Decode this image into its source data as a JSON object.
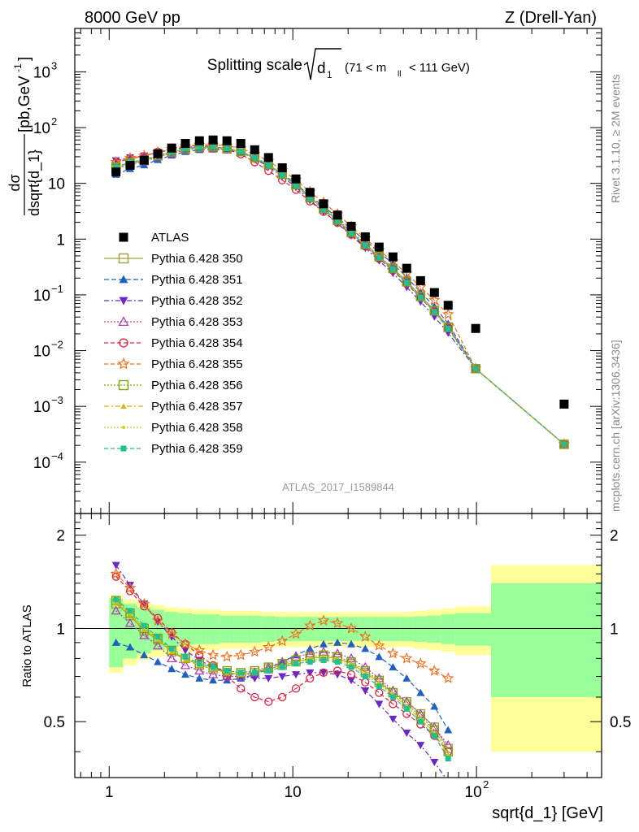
{
  "header": {
    "left": "8000 GeV pp",
    "right": "Z (Drell-Yan)"
  },
  "main_title": {
    "text": "Splitting scale",
    "sqrt_arg": "d",
    "sqrt_sub": "1",
    "cut_open": "(71 < m",
    "cut_sub": "ll",
    "cut_close": "< 111 GeV)"
  },
  "ylabel": {
    "numerator": "dσ",
    "denominator": "dsqrt{d_1}",
    "units": "[pb,GeV",
    "units_sup": "-1",
    "units_close": "]"
  },
  "ratio_ylabel": "Ratio to ATLAS",
  "xlabel": "sqrt{d_1} [GeV]",
  "analysis_id": "ATLAS_2017_I1589844",
  "side_right_top": "Rivet 3.1.10, ≥ 2M events",
  "side_right_bottom": "mcplots.cern.ch [arXiv:1306.3436]",
  "chart_data": {
    "type": "scatter",
    "x_scale": "log",
    "y_scale": "log",
    "xlim": [
      0.65,
      480
    ],
    "ylim_main": [
      1.2e-05,
      6000
    ],
    "ylim_ratio": [
      0.33,
      2.35
    ],
    "x_ticks": [
      {
        "v": 1,
        "label": "1"
      },
      {
        "v": 10,
        "label": "10"
      },
      {
        "v": 100,
        "label": "10",
        "sup": "2"
      }
    ],
    "y_ticks_main": [
      {
        "v": 1000,
        "label": "10",
        "sup": "3"
      },
      {
        "v": 100,
        "label": "10",
        "sup": "2"
      },
      {
        "v": 10,
        "label": "10",
        "sup": ""
      },
      {
        "v": 1,
        "label": "1",
        "sup": ""
      },
      {
        "v": 0.1,
        "label": "10",
        "sup": "−1"
      },
      {
        "v": 0.01,
        "label": "10",
        "sup": "−2"
      },
      {
        "v": 0.001,
        "label": "10",
        "sup": "−3"
      },
      {
        "v": 0.0001,
        "label": "10",
        "sup": "−4"
      }
    ],
    "y_ticks_ratio": [
      {
        "v": 0.5,
        "label": "0.5"
      },
      {
        "v": 1,
        "label": "1"
      },
      {
        "v": 2,
        "label": "2"
      }
    ],
    "legend_placement": "middle-left",
    "x": [
      1.09,
      1.3,
      1.55,
      1.84,
      2.19,
      2.6,
      3.1,
      3.68,
      4.38,
      5.21,
      6.2,
      7.37,
      8.76,
      10.4,
      12.4,
      14.7,
      17.5,
      20.8,
      24.8,
      29.5,
      35.1,
      41.7,
      49.6,
      59.0,
      70.1,
      99.0,
      300.0
    ],
    "atlas": {
      "name": "ATLAS",
      "values": [
        16,
        21,
        26,
        34,
        43,
        52,
        58,
        60,
        58,
        52,
        40,
        29,
        19,
        12,
        6.9,
        4.3,
        2.7,
        1.7,
        1.1,
        0.72,
        0.48,
        0.3,
        0.18,
        0.11,
        0.065,
        0.025,
        0.0011
      ]
    },
    "band_edges": [
      1.0,
      1.19,
      1.42,
      1.69,
      2.01,
      2.39,
      2.84,
      3.38,
      4.02,
      4.78,
      5.68,
      6.76,
      8.04,
      9.56,
      11.4,
      13.5,
      16.1,
      19.1,
      22.7,
      27.0,
      32.1,
      38.2,
      45.4,
      54.0,
      64.3,
      76.5,
      120,
      480
    ],
    "band_stat": [
      0.25,
      0.2,
      0.17,
      0.15,
      0.13,
      0.12,
      0.11,
      0.11,
      0.1,
      0.1,
      0.1,
      0.095,
      0.09,
      0.09,
      0.09,
      0.09,
      0.09,
      0.09,
      0.09,
      0.09,
      0.09,
      0.09,
      0.095,
      0.1,
      0.11,
      0.12,
      0.4
    ],
    "band_total": [
      0.28,
      0.24,
      0.21,
      0.19,
      0.17,
      0.16,
      0.15,
      0.15,
      0.14,
      0.14,
      0.14,
      0.13,
      0.13,
      0.13,
      0.13,
      0.13,
      0.13,
      0.13,
      0.13,
      0.13,
      0.13,
      0.13,
      0.14,
      0.15,
      0.16,
      0.18,
      0.6
    ],
    "series": [
      {
        "name": "Pythia 6.428 350",
        "color": "#a0a040",
        "marker": "square-open",
        "dash": "solid",
        "ratio": [
          1.2,
          1.1,
          0.98,
          0.92,
          0.84,
          0.8,
          0.76,
          0.74,
          0.72,
          0.71,
          0.72,
          0.74,
          0.76,
          0.78,
          0.8,
          0.81,
          0.8,
          0.77,
          0.72,
          0.67,
          0.62,
          0.58,
          0.53,
          0.48,
          0.41
        ]
      },
      {
        "name": "Pythia 6.428 351",
        "color": "#1f60c0",
        "marker": "triangle-up",
        "dash": "6,3",
        "ratio": [
          0.9,
          0.87,
          0.82,
          0.78,
          0.74,
          0.71,
          0.69,
          0.68,
          0.68,
          0.69,
          0.71,
          0.74,
          0.78,
          0.82,
          0.86,
          0.89,
          0.9,
          0.89,
          0.86,
          0.81,
          0.75,
          0.69,
          0.62,
          0.56,
          0.47
        ]
      },
      {
        "name": "Pythia 6.428 352",
        "color": "#6a28c8",
        "marker": "triangle-down",
        "dash": "6,3,2,3",
        "ratio": [
          1.6,
          1.38,
          1.2,
          1.05,
          0.94,
          0.85,
          0.79,
          0.75,
          0.72,
          0.7,
          0.69,
          0.69,
          0.7,
          0.71,
          0.72,
          0.72,
          0.71,
          0.68,
          0.63,
          0.57,
          0.51,
          0.46,
          0.42,
          0.37,
          0.32
        ]
      },
      {
        "name": "Pythia 6.428 353",
        "color": "#b040b0",
        "marker": "triangle-up-open",
        "dash": "2,2",
        "ratio": [
          1.14,
          1.04,
          0.95,
          0.88,
          0.8,
          0.76,
          0.73,
          0.71,
          0.7,
          0.7,
          0.72,
          0.75,
          0.78,
          0.81,
          0.83,
          0.84,
          0.83,
          0.8,
          0.75,
          0.69,
          0.63,
          0.58,
          0.53,
          0.48,
          0.42
        ]
      },
      {
        "name": "Pythia 6.428 354",
        "color": "#e02040",
        "marker": "circle-open",
        "dash": "5,3",
        "ratio": [
          1.47,
          1.32,
          1.18,
          1.08,
          0.97,
          0.89,
          0.82,
          0.76,
          0.7,
          0.64,
          0.6,
          0.58,
          0.6,
          0.64,
          0.69,
          0.72,
          0.73,
          0.71,
          0.67,
          0.62,
          0.57,
          0.53,
          0.49,
          0.45,
          0.4
        ]
      },
      {
        "name": "Pythia 6.428 355",
        "color": "#f07020",
        "marker": "star-open",
        "dash": "5,3",
        "ratio": [
          1.5,
          1.35,
          1.2,
          1.06,
          0.96,
          0.89,
          0.85,
          0.82,
          0.81,
          0.82,
          0.84,
          0.87,
          0.91,
          0.96,
          1.02,
          1.06,
          1.04,
          1.0,
          0.94,
          0.88,
          0.83,
          0.8,
          0.77,
          0.73,
          0.69
        ]
      },
      {
        "name": "Pythia 6.428 356",
        "color": "#80a010",
        "marker": "square-open",
        "dash": "2,2",
        "ratio": [
          1.23,
          1.12,
          1.0,
          0.93,
          0.85,
          0.8,
          0.77,
          0.75,
          0.73,
          0.72,
          0.73,
          0.75,
          0.77,
          0.79,
          0.81,
          0.82,
          0.81,
          0.78,
          0.73,
          0.68,
          0.62,
          0.57,
          0.52,
          0.47,
          0.4
        ]
      },
      {
        "name": "Pythia 6.428 357",
        "color": "#d8b000",
        "marker": "tri-small",
        "dash": "6,3,2,3",
        "ratio": [
          1.21,
          1.11,
          0.99,
          0.92,
          0.84,
          0.79,
          0.76,
          0.74,
          0.72,
          0.71,
          0.72,
          0.74,
          0.76,
          0.78,
          0.8,
          0.81,
          0.8,
          0.77,
          0.72,
          0.67,
          0.61,
          0.56,
          0.51,
          0.46,
          0.39
        ]
      },
      {
        "name": "Pythia 6.428 358",
        "color": "#c8d020",
        "marker": "dot",
        "dash": "2,2",
        "ratio": [
          1.22,
          1.12,
          1.0,
          0.92,
          0.85,
          0.8,
          0.76,
          0.74,
          0.72,
          0.71,
          0.72,
          0.73,
          0.75,
          0.77,
          0.79,
          0.8,
          0.79,
          0.76,
          0.71,
          0.66,
          0.61,
          0.56,
          0.51,
          0.46,
          0.39
        ]
      },
      {
        "name": "Pythia 6.428 359",
        "color": "#20c090",
        "marker": "square-small",
        "dash": "5,3",
        "ratio": [
          1.24,
          1.14,
          1.02,
          0.94,
          0.86,
          0.81,
          0.77,
          0.75,
          0.73,
          0.72,
          0.72,
          0.73,
          0.75,
          0.77,
          0.78,
          0.79,
          0.78,
          0.75,
          0.7,
          0.65,
          0.6,
          0.55,
          0.5,
          0.45,
          0.38
        ]
      }
    ],
    "tail_ratio": [
      0.19,
      0.19,
      0.19,
      0.19,
      0.19,
      0.19,
      0.19,
      0.19,
      0.19,
      0.19
    ]
  }
}
